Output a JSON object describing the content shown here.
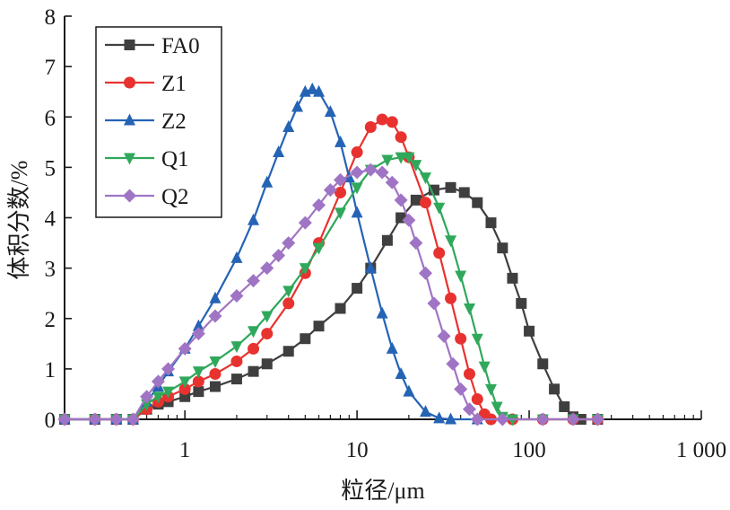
{
  "chart_data": {
    "type": "line",
    "xlabel": "粒径/μm",
    "ylabel": "体积分数/%",
    "x_scale": "log",
    "xlim": [
      0.2,
      1000
    ],
    "ylim": [
      0,
      8
    ],
    "x_tick_values": [
      1,
      10,
      100,
      1000
    ],
    "x_tick_labels": [
      "1",
      "10",
      "100",
      "1 000"
    ],
    "y_tick_values": [
      0,
      1,
      2,
      3,
      4,
      5,
      6,
      7,
      8
    ],
    "y_tick_labels": [
      "0",
      "1",
      "2",
      "3",
      "4",
      "5",
      "6",
      "7",
      "8"
    ],
    "legend_position": "top-left",
    "grid": false,
    "series": [
      {
        "name": "FA0",
        "color": "#3f3f3f",
        "marker": "square",
        "points": [
          [
            0.2,
            0
          ],
          [
            0.3,
            0
          ],
          [
            0.4,
            0
          ],
          [
            0.5,
            0
          ],
          [
            0.6,
            0.2
          ],
          [
            0.7,
            0.3
          ],
          [
            0.8,
            0.35
          ],
          [
            1,
            0.45
          ],
          [
            1.2,
            0.55
          ],
          [
            1.5,
            0.65
          ],
          [
            2,
            0.8
          ],
          [
            2.5,
            0.95
          ],
          [
            3,
            1.1
          ],
          [
            4,
            1.35
          ],
          [
            5,
            1.6
          ],
          [
            6,
            1.85
          ],
          [
            8,
            2.2
          ],
          [
            10,
            2.6
          ],
          [
            12,
            3
          ],
          [
            15,
            3.55
          ],
          [
            18,
            4
          ],
          [
            22,
            4.35
          ],
          [
            28,
            4.55
          ],
          [
            35,
            4.6
          ],
          [
            42,
            4.5
          ],
          [
            50,
            4.3
          ],
          [
            60,
            3.9
          ],
          [
            70,
            3.4
          ],
          [
            80,
            2.8
          ],
          [
            90,
            2.3
          ],
          [
            100,
            1.75
          ],
          [
            120,
            1.1
          ],
          [
            140,
            0.6
          ],
          [
            160,
            0.25
          ],
          [
            180,
            0.05
          ],
          [
            200,
            0
          ],
          [
            250,
            0
          ]
        ]
      },
      {
        "name": "Z1",
        "color": "#e8322f",
        "marker": "circle",
        "points": [
          [
            0.2,
            0
          ],
          [
            0.3,
            0
          ],
          [
            0.4,
            0
          ],
          [
            0.5,
            0
          ],
          [
            0.6,
            0.2
          ],
          [
            0.7,
            0.35
          ],
          [
            0.8,
            0.45
          ],
          [
            1,
            0.6
          ],
          [
            1.2,
            0.75
          ],
          [
            1.5,
            0.9
          ],
          [
            2,
            1.15
          ],
          [
            2.5,
            1.4
          ],
          [
            3,
            1.7
          ],
          [
            4,
            2.3
          ],
          [
            5,
            2.9
          ],
          [
            6,
            3.5
          ],
          [
            8,
            4.5
          ],
          [
            10,
            5.3
          ],
          [
            12,
            5.8
          ],
          [
            14,
            5.95
          ],
          [
            16,
            5.9
          ],
          [
            18,
            5.6
          ],
          [
            20,
            5.2
          ],
          [
            25,
            4.3
          ],
          [
            30,
            3.3
          ],
          [
            35,
            2.4
          ],
          [
            40,
            1.6
          ],
          [
            45,
            0.9
          ],
          [
            50,
            0.4
          ],
          [
            55,
            0.1
          ],
          [
            60,
            0
          ],
          [
            80,
            0
          ],
          [
            120,
            0
          ],
          [
            180,
            0
          ],
          [
            250,
            0
          ]
        ]
      },
      {
        "name": "Z2",
        "color": "#2563b5",
        "marker": "triangle-up",
        "points": [
          [
            0.2,
            0
          ],
          [
            0.3,
            0
          ],
          [
            0.4,
            0
          ],
          [
            0.5,
            0
          ],
          [
            0.6,
            0.35
          ],
          [
            0.7,
            0.65
          ],
          [
            0.8,
            0.95
          ],
          [
            1,
            1.4
          ],
          [
            1.2,
            1.85
          ],
          [
            1.5,
            2.4
          ],
          [
            2,
            3.2
          ],
          [
            2.5,
            3.95
          ],
          [
            3,
            4.7
          ],
          [
            3.5,
            5.3
          ],
          [
            4,
            5.8
          ],
          [
            4.5,
            6.2
          ],
          [
            5,
            6.5
          ],
          [
            5.5,
            6.55
          ],
          [
            6,
            6.5
          ],
          [
            7,
            6.1
          ],
          [
            8,
            5.5
          ],
          [
            9,
            4.8
          ],
          [
            10,
            4.1
          ],
          [
            12,
            3
          ],
          [
            14,
            2.1
          ],
          [
            16,
            1.4
          ],
          [
            18,
            0.9
          ],
          [
            20,
            0.55
          ],
          [
            25,
            0.15
          ],
          [
            30,
            0.02
          ],
          [
            35,
            0
          ],
          [
            50,
            0
          ]
        ]
      },
      {
        "name": "Q1",
        "color": "#2fa85b",
        "marker": "triangle-down",
        "points": [
          [
            0.2,
            0
          ],
          [
            0.3,
            0
          ],
          [
            0.4,
            0
          ],
          [
            0.5,
            0
          ],
          [
            0.6,
            0.3
          ],
          [
            0.7,
            0.45
          ],
          [
            0.8,
            0.55
          ],
          [
            1,
            0.75
          ],
          [
            1.2,
            0.95
          ],
          [
            1.5,
            1.15
          ],
          [
            2,
            1.45
          ],
          [
            2.5,
            1.75
          ],
          [
            3,
            2.05
          ],
          [
            4,
            2.55
          ],
          [
            5,
            3
          ],
          [
            6,
            3.4
          ],
          [
            8,
            4.1
          ],
          [
            10,
            4.6
          ],
          [
            12,
            4.95
          ],
          [
            15,
            5.15
          ],
          [
            18,
            5.2
          ],
          [
            20,
            5.2
          ],
          [
            22,
            5.05
          ],
          [
            25,
            4.8
          ],
          [
            30,
            4.2
          ],
          [
            35,
            3.55
          ],
          [
            40,
            2.85
          ],
          [
            45,
            2.2
          ],
          [
            50,
            1.6
          ],
          [
            55,
            1.05
          ],
          [
            60,
            0.6
          ],
          [
            65,
            0.25
          ],
          [
            70,
            0.05
          ],
          [
            80,
            0
          ],
          [
            120,
            0
          ],
          [
            180,
            0
          ],
          [
            250,
            0
          ]
        ]
      },
      {
        "name": "Q2",
        "color": "#a074c4",
        "marker": "diamond",
        "points": [
          [
            0.2,
            0
          ],
          [
            0.3,
            0
          ],
          [
            0.4,
            0
          ],
          [
            0.5,
            0
          ],
          [
            0.6,
            0.45
          ],
          [
            0.7,
            0.75
          ],
          [
            0.8,
            1
          ],
          [
            1,
            1.4
          ],
          [
            1.2,
            1.7
          ],
          [
            1.5,
            2.05
          ],
          [
            2,
            2.45
          ],
          [
            2.5,
            2.75
          ],
          [
            3,
            3
          ],
          [
            3.5,
            3.25
          ],
          [
            4,
            3.5
          ],
          [
            5,
            3.9
          ],
          [
            6,
            4.25
          ],
          [
            7,
            4.55
          ],
          [
            8,
            4.75
          ],
          [
            10,
            4.9
          ],
          [
            12,
            4.95
          ],
          [
            14,
            4.9
          ],
          [
            16,
            4.7
          ],
          [
            18,
            4.35
          ],
          [
            20,
            3.95
          ],
          [
            22,
            3.5
          ],
          [
            25,
            2.9
          ],
          [
            28,
            2.3
          ],
          [
            32,
            1.65
          ],
          [
            36,
            1.1
          ],
          [
            40,
            0.6
          ],
          [
            45,
            0.2
          ],
          [
            50,
            0
          ],
          [
            70,
            0
          ],
          [
            120,
            0
          ],
          [
            180,
            0
          ],
          [
            250,
            0
          ]
        ]
      }
    ]
  }
}
